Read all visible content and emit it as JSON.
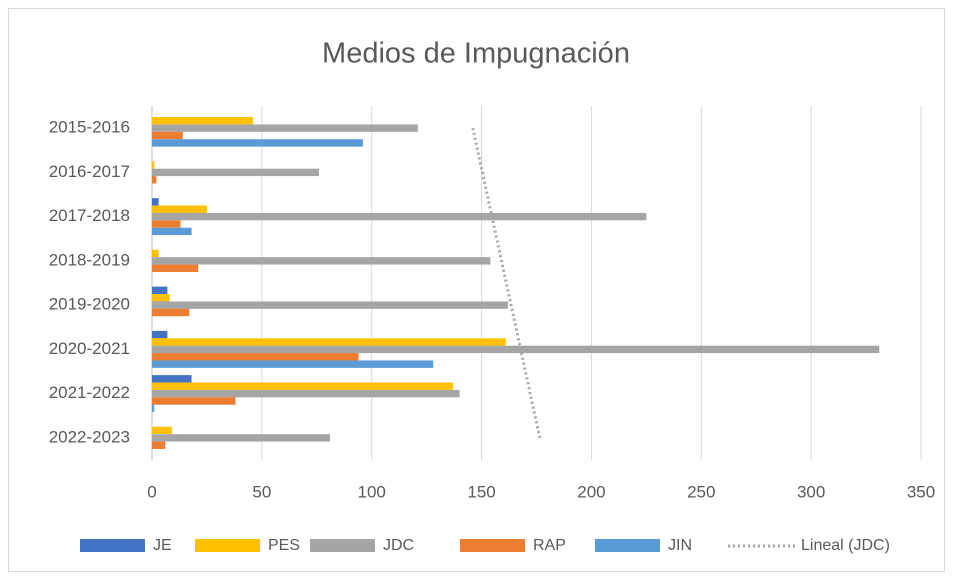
{
  "chart_data": {
    "type": "bar",
    "orientation": "horizontal",
    "title": "Medios de Impugnación",
    "categories": [
      "2015-2016",
      "2016-2017",
      "2017-2018",
      "2018-2019",
      "2019-2020",
      "2020-2021",
      "2021-2022",
      "2022-2023"
    ],
    "series": [
      {
        "name": "JE",
        "color": "#4472c4",
        "values": [
          0,
          0,
          3,
          0,
          7,
          7,
          18,
          0
        ]
      },
      {
        "name": "PES",
        "color": "#ffc000",
        "values": [
          46,
          1,
          25,
          3,
          8,
          161,
          137,
          9
        ]
      },
      {
        "name": "JDC",
        "color": "#a5a5a5",
        "values": [
          121,
          76,
          225,
          154,
          162,
          331,
          140,
          81
        ]
      },
      {
        "name": "RAP",
        "color": "#ed7d31",
        "values": [
          14,
          2,
          13,
          21,
          17,
          94,
          38,
          6
        ]
      },
      {
        "name": "JIN",
        "color": "#5b9bd5",
        "values": [
          96,
          0,
          18,
          0,
          0,
          128,
          1,
          0
        ]
      }
    ],
    "trendline": {
      "name": "Lineal (JDC)",
      "series": 2,
      "kind": "linear",
      "color": "#a5a5a5"
    },
    "xlim": [
      0,
      350
    ],
    "xticks": [
      0,
      50,
      100,
      150,
      200,
      250,
      300,
      350
    ],
    "grid": true,
    "legend": "bottom"
  }
}
